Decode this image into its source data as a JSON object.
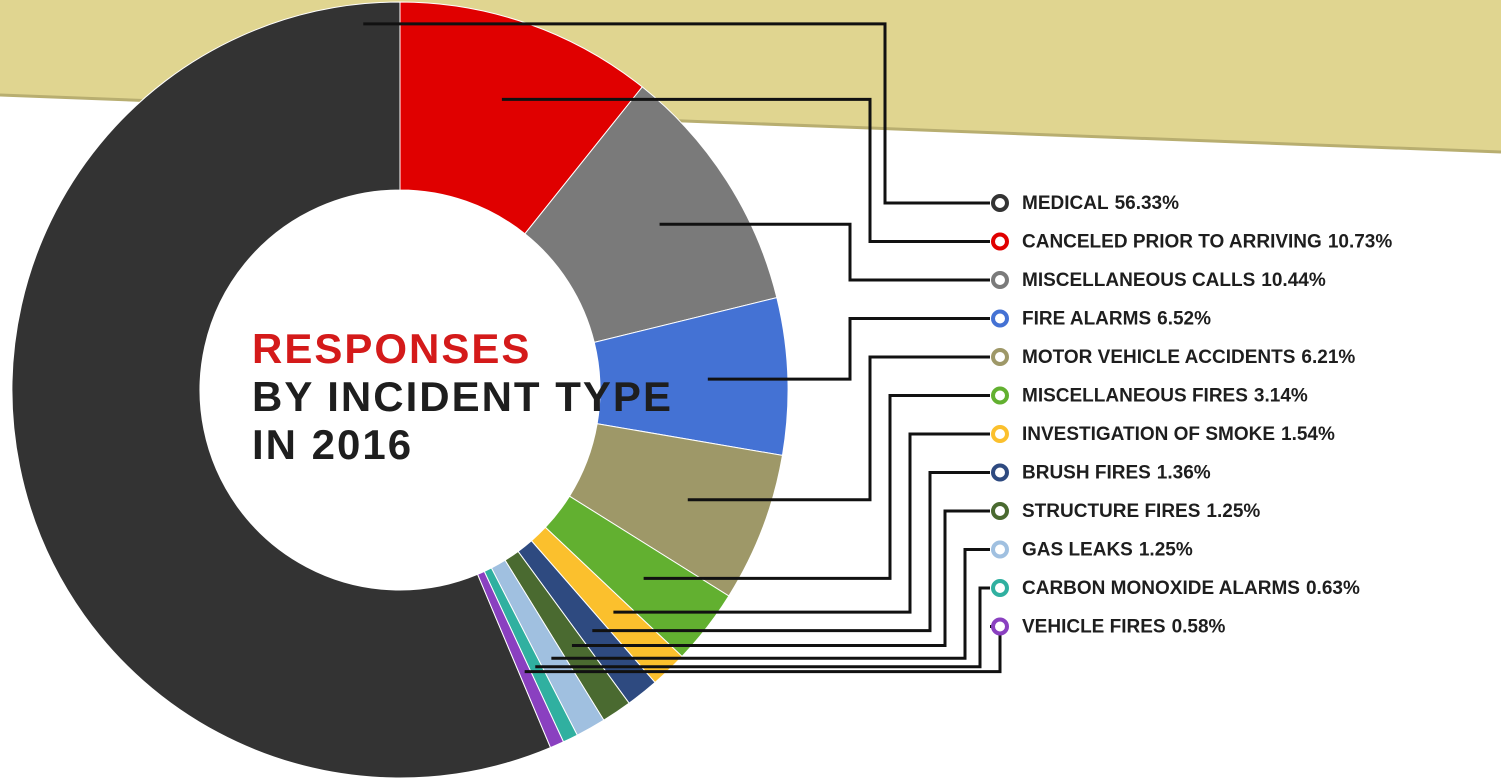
{
  "chart_data": {
    "type": "donut",
    "title_lines": [
      "RESPONSES",
      "BY INCIDENT TYPE",
      "IN 2016"
    ],
    "categories": [
      "MEDICAL",
      "CANCELED PRIOR TO ARRIVING",
      "MISCELLANEOUS CALLS",
      "FIRE ALARMS",
      "MOTOR VEHICLE ACCIDENTS",
      "MISCELLANEOUS FIRES",
      "INVESTIGATION OF SMOKE",
      "BRUSH FIRES",
      "STRUCTURE FIRES",
      "GAS LEAKS",
      "CARBON MONOXIDE ALARMS",
      "VEHICLE FIRES"
    ],
    "values": [
      56.33,
      10.73,
      10.44,
      6.52,
      6.21,
      3.14,
      1.54,
      1.36,
      1.25,
      1.25,
      0.63,
      0.58
    ],
    "value_labels": [
      "56.33%",
      "10.73%",
      "10.44%",
      "6.52%",
      "6.21%",
      "3.14%",
      "1.54%",
      "1.36%",
      "1.25%",
      "1.25%",
      "0.63%",
      "0.58%"
    ],
    "colors": [
      "#333333",
      "#e00000",
      "#7a7a7a",
      "#4472d4",
      "#9e9868",
      "#62b030",
      "#fbc02d",
      "#2e4a80",
      "#4a6a30",
      "#a0c0e0",
      "#30b0a0",
      "#8a40c0"
    ]
  }
}
